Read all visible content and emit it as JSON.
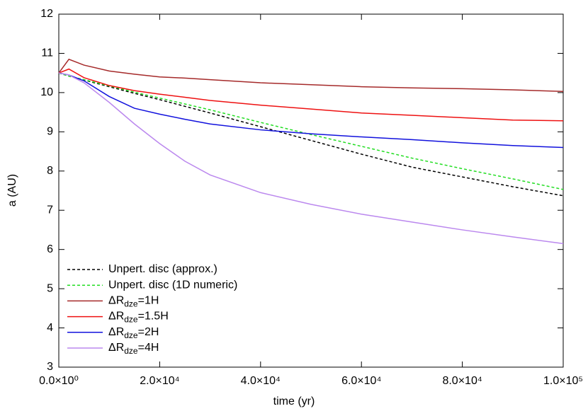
{
  "chart_data": {
    "type": "line",
    "x_label": "time (yr)",
    "y_label": "a (AU)",
    "x": [
      0,
      2000,
      5000,
      10000,
      15000,
      20000,
      25000,
      30000,
      40000,
      50000,
      60000,
      70000,
      80000,
      90000,
      100000
    ],
    "series": [
      {
        "name": "Unpert. disc (approx.)",
        "color": "#000000",
        "dash": true,
        "values": [
          10.5,
          10.42,
          10.32,
          10.15,
          9.98,
          9.82,
          9.65,
          9.48,
          9.13,
          8.78,
          8.43,
          8.1,
          7.85,
          7.6,
          7.37
        ]
      },
      {
        "name": "Unpert. disc (1D numeric)",
        "color": "#22dd22",
        "dash": true,
        "values": [
          10.5,
          10.42,
          10.33,
          10.17,
          10.01,
          9.86,
          9.71,
          9.56,
          9.24,
          8.93,
          8.63,
          8.33,
          8.06,
          7.8,
          7.53
        ]
      },
      {
        "name": "ΔRdze=1H",
        "color": "#a52a2a",
        "dash": false,
        "values": [
          10.5,
          10.85,
          10.7,
          10.55,
          10.47,
          10.4,
          10.37,
          10.33,
          10.25,
          10.2,
          10.15,
          10.12,
          10.1,
          10.07,
          10.03
        ]
      },
      {
        "name": "ΔRdze=1.5H",
        "color": "#ee1111",
        "dash": false,
        "values": [
          10.5,
          10.6,
          10.38,
          10.18,
          10.05,
          9.96,
          9.88,
          9.8,
          9.68,
          9.58,
          9.48,
          9.42,
          9.36,
          9.3,
          9.28
        ]
      },
      {
        "name": "ΔRdze=2H",
        "color": "#1111dd",
        "dash": false,
        "values": [
          10.5,
          10.45,
          10.3,
          9.9,
          9.6,
          9.45,
          9.32,
          9.2,
          9.05,
          8.95,
          8.87,
          8.8,
          8.72,
          8.65,
          8.6
        ]
      },
      {
        "name": "ΔRdze=4H",
        "color": "#bb88ee",
        "dash": false,
        "values": [
          10.5,
          10.45,
          10.25,
          9.75,
          9.2,
          8.7,
          8.25,
          7.9,
          7.45,
          7.15,
          6.9,
          6.7,
          6.5,
          6.32,
          6.15
        ]
      }
    ],
    "xlim": [
      0,
      100000
    ],
    "xticks": [
      {
        "value": 0,
        "label": "0.0×10⁰"
      },
      {
        "value": 20000,
        "label": "2.0×10⁴"
      },
      {
        "value": 40000,
        "label": "4.0×10⁴"
      },
      {
        "value": 60000,
        "label": "6.0×10⁴"
      },
      {
        "value": 80000,
        "label": "8.0×10⁴"
      },
      {
        "value": 100000,
        "label": "1.0×10⁵"
      }
    ],
    "ylim": [
      3,
      12
    ],
    "yticks": [
      3,
      4,
      5,
      6,
      7,
      8,
      9,
      10,
      11,
      12
    ],
    "grid": false,
    "legend": "lower left"
  }
}
